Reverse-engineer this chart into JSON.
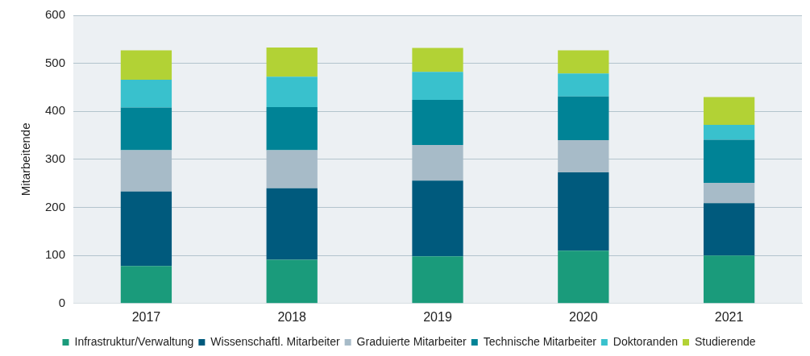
{
  "chart_data": {
    "type": "bar",
    "ylabel": "Mitarbeitende",
    "categories": [
      "2017",
      "2018",
      "2019",
      "2020",
      "2021"
    ],
    "stacked": true,
    "ylim": [
      0,
      600
    ],
    "yticks": [
      0,
      100,
      200,
      300,
      400,
      500,
      600
    ],
    "grid": "y",
    "legend": "bottom",
    "series": [
      {
        "name": "Infrastruktur/Verwaltung",
        "color": "#1a9b7b",
        "values": [
          78,
          91,
          98,
          110,
          100
        ]
      },
      {
        "name": "Wissenschaftl. Mitarbeiter",
        "color": "#005a7d",
        "values": [
          155,
          149,
          158,
          163,
          109
        ]
      },
      {
        "name": "Graduierte Mitarbeiter",
        "color": "#a7bbc8",
        "values": [
          86,
          79,
          74,
          67,
          42
        ]
      },
      {
        "name": "Technische Mitarbeiter",
        "color": "#008396",
        "values": [
          89,
          90,
          94,
          91,
          90
        ]
      },
      {
        "name": "Doktoranden",
        "color": "#39c1cd",
        "values": [
          58,
          63,
          58,
          48,
          31
        ]
      },
      {
        "name": "Studierende",
        "color": "#b2d235",
        "values": [
          61,
          61,
          50,
          48,
          58
        ]
      }
    ]
  }
}
